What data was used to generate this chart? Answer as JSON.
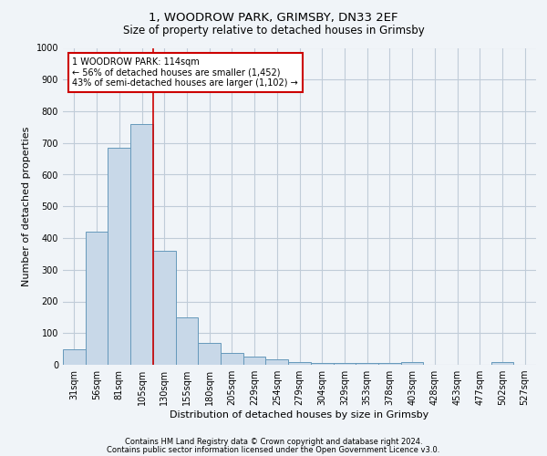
{
  "title1": "1, WOODROW PARK, GRIMSBY, DN33 2EF",
  "title2": "Size of property relative to detached houses in Grimsby",
  "xlabel": "Distribution of detached houses by size in Grimsby",
  "ylabel": "Number of detached properties",
  "categories": [
    "31sqm",
    "56sqm",
    "81sqm",
    "105sqm",
    "130sqm",
    "155sqm",
    "180sqm",
    "205sqm",
    "229sqm",
    "254sqm",
    "279sqm",
    "304sqm",
    "329sqm",
    "353sqm",
    "378sqm",
    "403sqm",
    "428sqm",
    "453sqm",
    "477sqm",
    "502sqm",
    "527sqm"
  ],
  "values": [
    50,
    420,
    685,
    760,
    360,
    150,
    70,
    37,
    27,
    17,
    10,
    5,
    5,
    5,
    5,
    8,
    0,
    0,
    0,
    8,
    0
  ],
  "bar_color": "#c8d8e8",
  "bar_edge_color": "#6699bb",
  "annotation_text": "1 WOODROW PARK: 114sqm\n← 56% of detached houses are smaller (1,452)\n43% of semi-detached houses are larger (1,102) →",
  "annotation_box_color": "#ffffff",
  "annotation_box_edge": "#cc0000",
  "vline_color": "#cc0000",
  "vline_x": 3.5,
  "ylim": [
    0,
    1000
  ],
  "yticks": [
    0,
    100,
    200,
    300,
    400,
    500,
    600,
    700,
    800,
    900,
    1000
  ],
  "footer1": "Contains HM Land Registry data © Crown copyright and database right 2024.",
  "footer2": "Contains public sector information licensed under the Open Government Licence v3.0.",
  "bg_color": "#f0f4f8",
  "grid_color": "#c0ccd8",
  "title1_fontsize": 9.5,
  "title2_fontsize": 8.5,
  "xlabel_fontsize": 8,
  "ylabel_fontsize": 8,
  "tick_fontsize": 7,
  "footer_fontsize": 6,
  "ann_fontsize": 7
}
